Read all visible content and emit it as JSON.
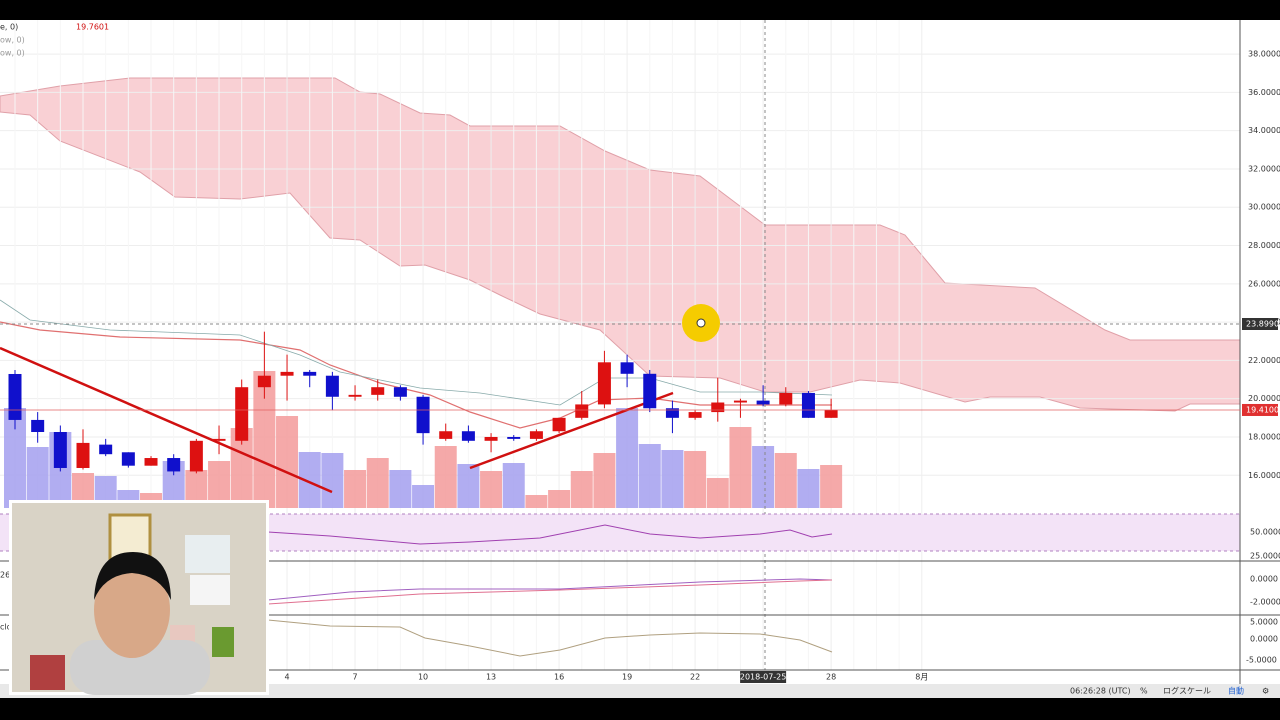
{
  "chart_data": {
    "type": "candlestick",
    "categories": [
      null,
      null,
      null,
      null,
      null,
      null,
      null,
      null,
      null,
      null,
      null,
      null,
      "4",
      null,
      null,
      "7",
      null,
      null,
      "10",
      null,
      null,
      "13",
      null,
      null,
      "16",
      null,
      null,
      "19",
      null,
      null,
      "22",
      null,
      null,
      "2018-07-25",
      null,
      null,
      "28",
      null,
      null,
      null,
      "8月"
    ],
    "open": [
      21.29,
      18.89,
      18.26,
      16.38,
      17.6,
      17.2,
      16.5,
      16.9,
      16.2,
      17.8,
      17.8,
      20.6,
      21.2,
      21.4,
      21.2,
      20.1,
      20.2,
      20.6,
      20.1,
      17.9,
      18.3,
      17.8,
      18.0,
      17.9,
      18.3,
      19.0,
      19.7,
      21.9,
      21.3,
      19.5,
      19.0,
      19.3,
      19.8,
      19.9,
      19.7,
      20.3,
      19.0,
      null,
      null,
      null,
      null
    ],
    "high": [
      21.5,
      19.3,
      18.6,
      18.4,
      17.9,
      17.2,
      17.0,
      17.1,
      17.9,
      18.6,
      21.0,
      23.5,
      22.3,
      21.5,
      21.4,
      20.7,
      21.0,
      20.7,
      20.2,
      18.7,
      18.6,
      18.2,
      18.1,
      18.4,
      19.0,
      20.4,
      22.5,
      22.3,
      21.5,
      19.9,
      19.4,
      21.1,
      20.0,
      20.7,
      20.6,
      20.4,
      20.0,
      null,
      null,
      null,
      null
    ],
    "low": [
      18.4,
      17.7,
      16.2,
      16.3,
      17.0,
      16.4,
      16.5,
      16.0,
      16.1,
      17.1,
      17.6,
      20.0,
      19.9,
      20.6,
      19.4,
      19.9,
      19.9,
      19.9,
      17.6,
      17.8,
      17.7,
      17.2,
      17.8,
      17.8,
      18.2,
      18.9,
      19.5,
      20.6,
      19.3,
      18.2,
      18.9,
      18.8,
      19.0,
      19.6,
      19.6,
      19.0,
      19.0,
      null,
      null,
      null,
      null
    ],
    "close": [
      18.89,
      18.26,
      16.38,
      17.69,
      17.1,
      16.5,
      16.9,
      16.2,
      17.8,
      17.9,
      20.6,
      21.2,
      21.4,
      21.2,
      20.1,
      20.2,
      20.6,
      20.1,
      18.2,
      18.3,
      17.8,
      18.0,
      17.9,
      18.3,
      19.0,
      19.7,
      21.9,
      21.3,
      19.5,
      19.0,
      19.3,
      19.8,
      19.9,
      19.7,
      20.3,
      19.0,
      19.41,
      null,
      null,
      null,
      null
    ],
    "volume": [
      100,
      61,
      76,
      35,
      32,
      18,
      15,
      47,
      38,
      47,
      80,
      137,
      92,
      56,
      55,
      38,
      50,
      38,
      23,
      62,
      44,
      37,
      45,
      13,
      18,
      37,
      55,
      100,
      64,
      58,
      57,
      30,
      81,
      62,
      55,
      39,
      43,
      null,
      null,
      null,
      null
    ],
    "up_color": "#dd1111",
    "down_color": "#1010cc",
    "up_volume_color": "#f4a0a0",
    "down_volume_color": "#a8a4f0",
    "ylim": [
      14.29,
      39.78
    ],
    "yticks": [
      {
        "value": 16,
        "label": "16.0000"
      },
      {
        "value": 18,
        "label": "18.0000"
      },
      {
        "value": 20,
        "label": "20.0000"
      },
      {
        "value": 22,
        "label": "22.0000"
      },
      {
        "value": 24,
        "label": "24.0000"
      },
      {
        "value": 26,
        "label": "26.0000"
      },
      {
        "value": 28,
        "label": "28.0000"
      },
      {
        "value": 30,
        "label": "30.0000"
      },
      {
        "value": 32,
        "label": "32.0000"
      },
      {
        "value": 34,
        "label": "34.0000"
      },
      {
        "value": 36,
        "label": "36.0000"
      },
      {
        "value": 38,
        "label": "38.0000"
      }
    ],
    "last_price_label": "19.4100",
    "crosshair_label": "23.8990",
    "grid": true
  },
  "legend": {
    "row1": "e, 0)",
    "row1_value": "19.7601",
    "row2": "ow, 0)",
    "row3": "ow, 0)"
  },
  "panes": {
    "rsi_ticks": [
      "50.0000",
      "25.0000"
    ],
    "macd_ticks": [
      "0.0000",
      "-2.0000"
    ],
    "osc_ticks": [
      "5.0000",
      "0.0000",
      "-5.0000"
    ],
    "left_labels": [
      "26",
      "clo"
    ]
  },
  "status_bar": {
    "time": "06:26:28 (UTC)",
    "percent": "%",
    "log": "ログスケール",
    "auto": "自動"
  }
}
